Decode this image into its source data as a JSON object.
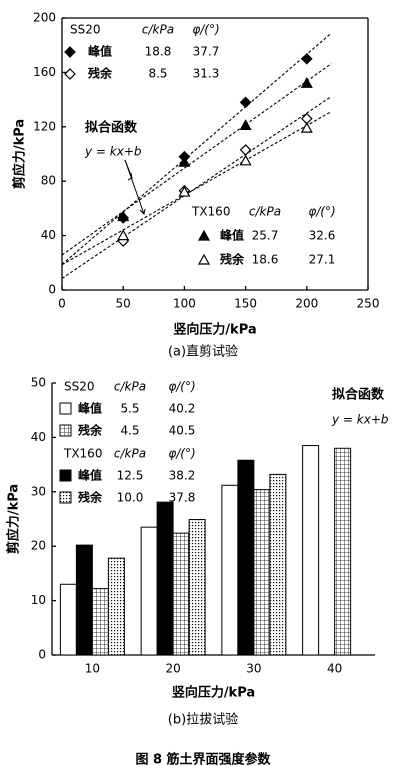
{
  "figure_caption": "图 8  筋土界面强度参数",
  "chart_data": [
    {
      "type": "scatter",
      "caption": "(a)直剪试验",
      "xlabel": "竖向压力/kPa",
      "ylabel": "剪应力/kPa",
      "xlim": [
        0,
        250
      ],
      "xticks": [
        0,
        50,
        100,
        150,
        200,
        250
      ],
      "ylim": [
        0,
        200
      ],
      "yticks": [
        0,
        40,
        80,
        120,
        160,
        200
      ],
      "param_headers": [
        "c/kPa",
        "φ/(°)"
      ],
      "groups": [
        "SS20",
        "TX160"
      ],
      "annotation": [
        "拟合函数",
        "y = kx+b"
      ],
      "x": [
        50,
        100,
        150,
        200
      ],
      "series": [
        {
          "name": "峰值",
          "group": 0,
          "marker": "diamond",
          "filled": true,
          "color": "#000",
          "c": 18.8,
          "phi": 37.7,
          "values": [
            53,
            98,
            138,
            170
          ]
        },
        {
          "name": "残余",
          "group": 0,
          "marker": "diamond",
          "filled": false,
          "color": "#000",
          "c": 8.5,
          "phi": 31.3,
          "values": [
            36,
            73,
            103,
            126
          ]
        },
        {
          "name": "峰值",
          "group": 1,
          "marker": "triangle",
          "filled": true,
          "color": "#000",
          "c": 25.7,
          "phi": 32.6,
          "values": [
            54,
            94,
            121,
            152
          ]
        },
        {
          "name": "残余",
          "group": 1,
          "marker": "triangle",
          "filled": false,
          "color": "#000",
          "c": 18.6,
          "phi": 27.1,
          "values": [
            40,
            72,
            95,
            119
          ]
        }
      ]
    },
    {
      "type": "bar",
      "caption": "(b)拉拔试验",
      "xlabel": "竖向压力/kPa",
      "ylabel": "剪应力/kPa",
      "ylim": [
        0,
        50
      ],
      "yticks": [
        0,
        10,
        20,
        30,
        40,
        50
      ],
      "param_headers": [
        "c/kPa",
        "φ/(°)"
      ],
      "groups": [
        "SS20",
        "TX160"
      ],
      "annotation": [
        "拟合函数",
        "y = kx+b"
      ],
      "categories": [
        10,
        20,
        30,
        40
      ],
      "series": [
        {
          "name": "峰值",
          "group": 0,
          "color": "#ffffff",
          "pattern": "none",
          "c": 5.5,
          "phi": 40.2,
          "values": [
            13,
            23.5,
            31.2,
            38.5
          ]
        },
        {
          "name": "峰值",
          "group": 1,
          "color": "#000000",
          "pattern": "none",
          "c": 12.5,
          "phi": 38.2,
          "values": [
            20.2,
            28.1,
            35.8,
            null
          ]
        },
        {
          "name": "残余",
          "group": 0,
          "color": "#ffffff",
          "pattern": "grid",
          "c": 4.5,
          "phi": 40.5,
          "values": [
            12.2,
            22.4,
            30.4,
            38
          ]
        },
        {
          "name": "残余",
          "group": 1,
          "color": "#ffffff",
          "pattern": "dots",
          "c": {
            "value": 10,
            "label": "10.0"
          },
          "phi": 37.8,
          "values": [
            17.8,
            24.9,
            33.2,
            null
          ]
        }
      ]
    }
  ]
}
